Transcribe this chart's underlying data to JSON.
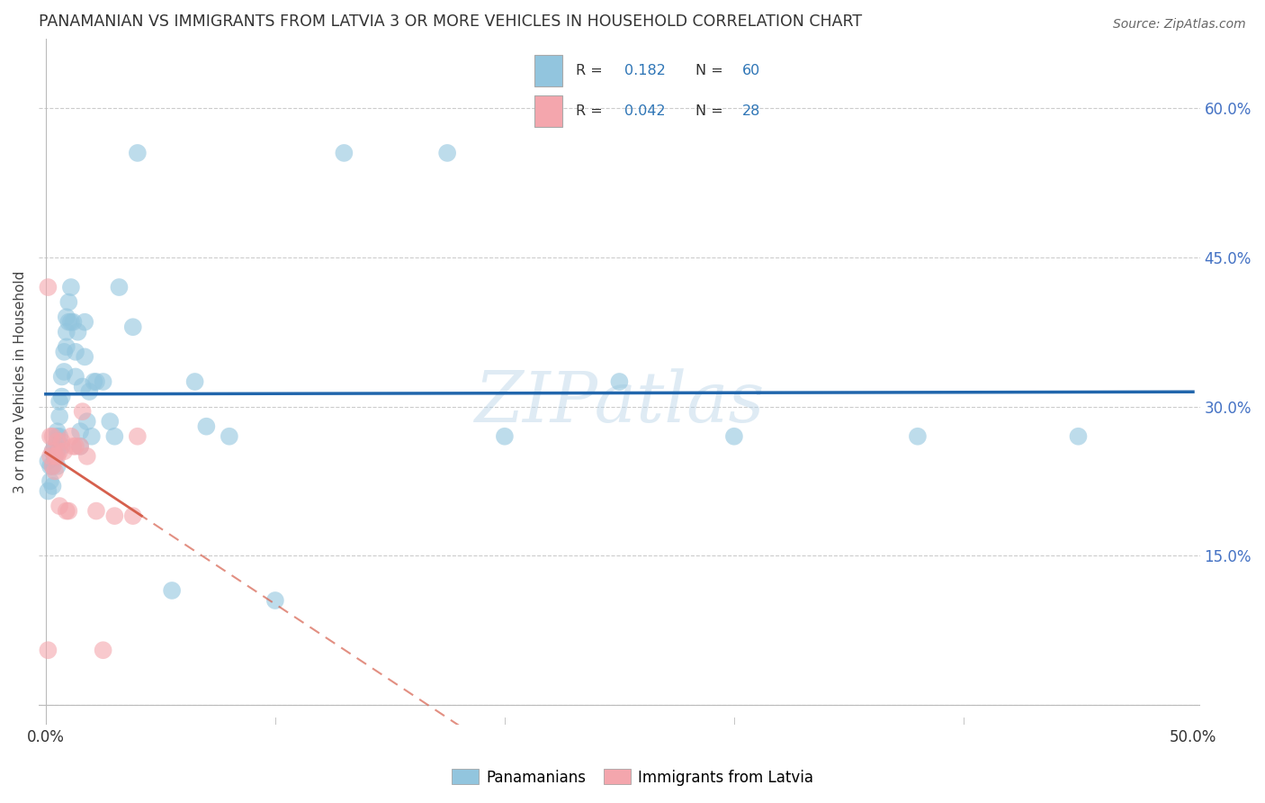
{
  "title": "PANAMANIAN VS IMMIGRANTS FROM LATVIA 3 OR MORE VEHICLES IN HOUSEHOLD CORRELATION CHART",
  "source": "Source: ZipAtlas.com",
  "ylabel": "3 or more Vehicles in Household",
  "xlim": [
    -0.003,
    0.503
  ],
  "ylim": [
    -0.02,
    0.67
  ],
  "xtick_positions": [
    0.0,
    0.05,
    0.1,
    0.15,
    0.2,
    0.25,
    0.3,
    0.35,
    0.4,
    0.45,
    0.5
  ],
  "xticklabels": [
    "0.0%",
    "",
    "",
    "",
    "",
    "",
    "",
    "",
    "",
    "",
    "50.0%"
  ],
  "ytick_positions": [
    0.0,
    0.15,
    0.3,
    0.45,
    0.6
  ],
  "ytick_labels_left": [
    "",
    "",
    "",
    "",
    ""
  ],
  "ytick_labels_right": [
    "",
    "15.0%",
    "30.0%",
    "45.0%",
    "60.0%"
  ],
  "watermark": "ZIPatlas",
  "blue_scatter_color": "#92c5de",
  "pink_scatter_color": "#f4a6ad",
  "blue_line_color": "#2166ac",
  "pink_line_color": "#d6604d",
  "legend_R_blue": "0.182",
  "legend_N_blue": "60",
  "legend_R_pink": "0.042",
  "legend_N_pink": "28",
  "pan_x": [
    0.001,
    0.001,
    0.002,
    0.002,
    0.003,
    0.003,
    0.003,
    0.004,
    0.004,
    0.005,
    0.005,
    0.005,
    0.005,
    0.006,
    0.006,
    0.006,
    0.007,
    0.007,
    0.007,
    0.008,
    0.008,
    0.009,
    0.009,
    0.009,
    0.01,
    0.01,
    0.011,
    0.011,
    0.012,
    0.013,
    0.013,
    0.014,
    0.015,
    0.015,
    0.016,
    0.017,
    0.017,
    0.018,
    0.019,
    0.02,
    0.021,
    0.022,
    0.025,
    0.028,
    0.03,
    0.032,
    0.038,
    0.04,
    0.055,
    0.065,
    0.07,
    0.08,
    0.1,
    0.13,
    0.175,
    0.2,
    0.25,
    0.3,
    0.38,
    0.45
  ],
  "pan_y": [
    0.245,
    0.215,
    0.24,
    0.225,
    0.255,
    0.24,
    0.22,
    0.26,
    0.25,
    0.275,
    0.27,
    0.255,
    0.24,
    0.305,
    0.29,
    0.27,
    0.33,
    0.31,
    0.26,
    0.355,
    0.335,
    0.39,
    0.375,
    0.36,
    0.405,
    0.385,
    0.42,
    0.385,
    0.385,
    0.355,
    0.33,
    0.375,
    0.275,
    0.26,
    0.32,
    0.385,
    0.35,
    0.285,
    0.315,
    0.27,
    0.325,
    0.325,
    0.325,
    0.285,
    0.27,
    0.42,
    0.38,
    0.555,
    0.115,
    0.325,
    0.28,
    0.27,
    0.105,
    0.555,
    0.555,
    0.27,
    0.325,
    0.27,
    0.27,
    0.27
  ],
  "lat_x": [
    0.001,
    0.001,
    0.002,
    0.002,
    0.003,
    0.003,
    0.003,
    0.004,
    0.004,
    0.005,
    0.005,
    0.006,
    0.006,
    0.007,
    0.008,
    0.009,
    0.01,
    0.011,
    0.012,
    0.013,
    0.015,
    0.016,
    0.018,
    0.022,
    0.025,
    0.03,
    0.038,
    0.04
  ],
  "lat_y": [
    0.42,
    0.055,
    0.27,
    0.25,
    0.27,
    0.255,
    0.24,
    0.25,
    0.235,
    0.265,
    0.25,
    0.255,
    0.2,
    0.265,
    0.255,
    0.195,
    0.195,
    0.27,
    0.26,
    0.26,
    0.26,
    0.295,
    0.25,
    0.195,
    0.055,
    0.19,
    0.19,
    0.27
  ]
}
